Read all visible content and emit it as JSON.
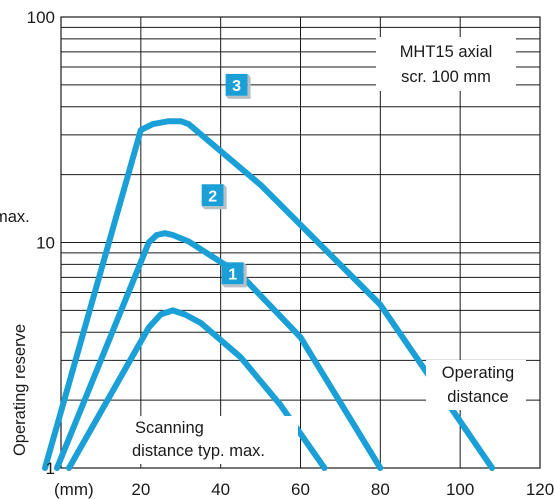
{
  "chart_data": {
    "type": "line",
    "title": "",
    "xlabel": "(mm)",
    "ylabel": "Operating reserve",
    "y_scale": "log",
    "xlim": [
      0,
      120
    ],
    "ylim": [
      1,
      100
    ],
    "x_ticks": [
      20,
      40,
      60,
      80,
      100,
      120
    ],
    "y_ticks": [
      1,
      10,
      100
    ],
    "grid": true,
    "curve_color": "#1a9fd6",
    "badge_color": "#1a9fd6",
    "series": [
      {
        "label": "1",
        "x": [
          2,
          22,
          25,
          28,
          31,
          35,
          45,
          55,
          66
        ],
        "y": [
          1,
          4.2,
          4.8,
          5.0,
          4.8,
          4.4,
          3.1,
          1.9,
          1
        ]
      },
      {
        "label": "2",
        "x": [
          -1,
          22,
          24,
          26,
          28,
          32,
          45,
          60,
          80
        ],
        "y": [
          1,
          10,
          10.8,
          11.0,
          10.8,
          10.1,
          7.2,
          3.8,
          1
        ]
      },
      {
        "label": "3",
        "x": [
          -4,
          20,
          23,
          27,
          30,
          32,
          50,
          80,
          108
        ],
        "y": [
          1,
          31.5,
          33.5,
          34.5,
          34.5,
          33.5,
          18,
          5.3,
          1
        ]
      }
    ],
    "annotations": {
      "sensor_line1": "MHT15 axial",
      "sensor_line2": "scr. 100 mm",
      "operating_line1": "Operating",
      "operating_line2": "distance",
      "scanning_line1": "Scanning",
      "scanning_line2": "distance typ. max.",
      "edge_label": "max."
    }
  }
}
